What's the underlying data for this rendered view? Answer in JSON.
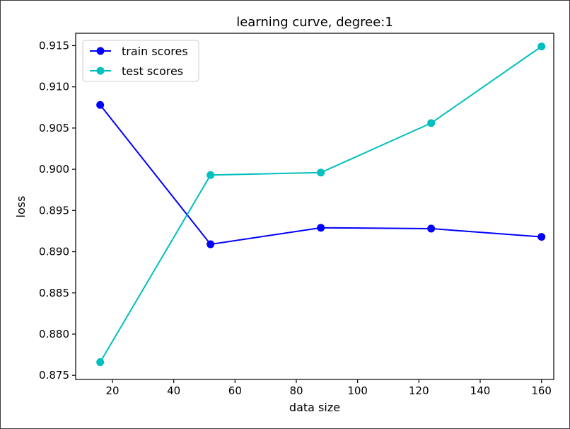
{
  "chart_data": {
    "type": "line",
    "title": "learning curve, degree:1",
    "xlabel": "data size",
    "ylabel": "loss",
    "xlim": [
      8,
      164
    ],
    "ylim": [
      0.8745,
      0.9165
    ],
    "xticks": [
      20,
      40,
      60,
      80,
      100,
      120,
      140,
      160
    ],
    "yticks": [
      0.875,
      0.88,
      0.885,
      0.89,
      0.895,
      0.9,
      0.905,
      0.91,
      0.915
    ],
    "ytick_labels": [
      "0.875",
      "0.880",
      "0.885",
      "0.890",
      "0.895",
      "0.900",
      "0.905",
      "0.910",
      "0.915"
    ],
    "x": [
      16,
      52,
      88,
      124,
      160
    ],
    "series": [
      {
        "name": "train scores",
        "color": "#0000ff",
        "values": [
          0.9078,
          0.8909,
          0.8929,
          0.8928,
          0.8918
        ]
      },
      {
        "name": "test scores",
        "color": "#00bfbf",
        "values": [
          0.8766,
          0.8993,
          0.8996,
          0.9056,
          0.9149
        ]
      }
    ],
    "legend_position": "top-left",
    "grid": false
  }
}
